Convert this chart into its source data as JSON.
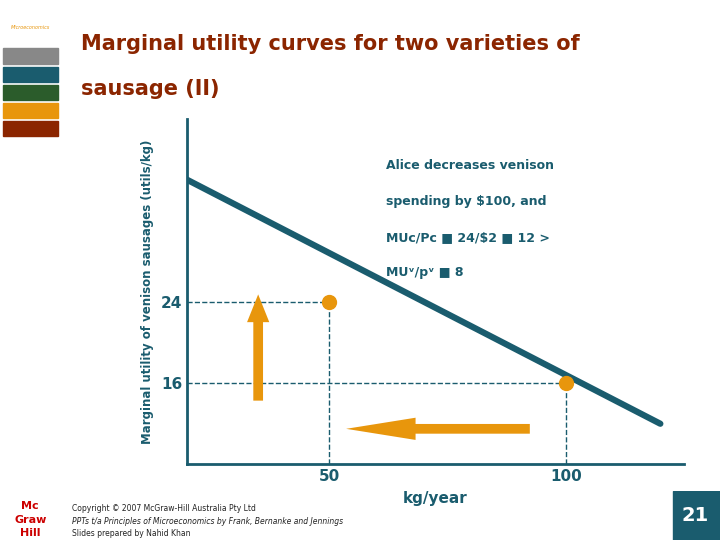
{
  "title_line1": "Marginal utility curves for two varieties of",
  "title_line2": "sausage (II)",
  "title_color": "#8B2500",
  "ylabel": "Marginal utility of venison sausages (utils/kg)",
  "xlabel": "kg/year",
  "bg_color": "#FFFFFF",
  "slide_bg": "#FFFFFF",
  "left_bar_color": "#E8960C",
  "line_color": "#1A5C6E",
  "line_x": [
    20,
    120
  ],
  "line_y": [
    36,
    12
  ],
  "point1_x": 50,
  "point1_y": 24,
  "point2_x": 100,
  "point2_y": 16,
  "point_color": "#E8960C",
  "dashed_color": "#1A5C6E",
  "annotation_line1": "Alice decreases venison",
  "annotation_line2": "spending by $100, and",
  "annotation_line3": "MUᴄ/Pᴄ ■ 24/$2 ■ 12 >",
  "annotation_line4": "MUᵛ/pᵛ ■ 8",
  "annotation_color": "#1A5C6E",
  "ytick_labels": [
    "16",
    "24"
  ],
  "ytick_vals": [
    16,
    24
  ],
  "xtick_labels": [
    "50",
    "100"
  ],
  "xtick_vals": [
    50,
    100
  ],
  "xlim": [
    20,
    125
  ],
  "ylim": [
    8,
    42
  ],
  "footer_bg": "#C8B84A",
  "footer_text1": "Copyright © 2007 McGraw-Hill Australia Pty Ltd",
  "footer_text2": "PPTs t/a Principles of Microeconomics by Frank, Bernanke and Jennings",
  "footer_text3": "Slides prepared by Nahid Khan",
  "page_number": "21",
  "sidebar_color": "#E8960C",
  "sidebar_top_color": "#2B2B2B",
  "teal_color": "#1A5C6E",
  "arrow_color": "#E8960C"
}
